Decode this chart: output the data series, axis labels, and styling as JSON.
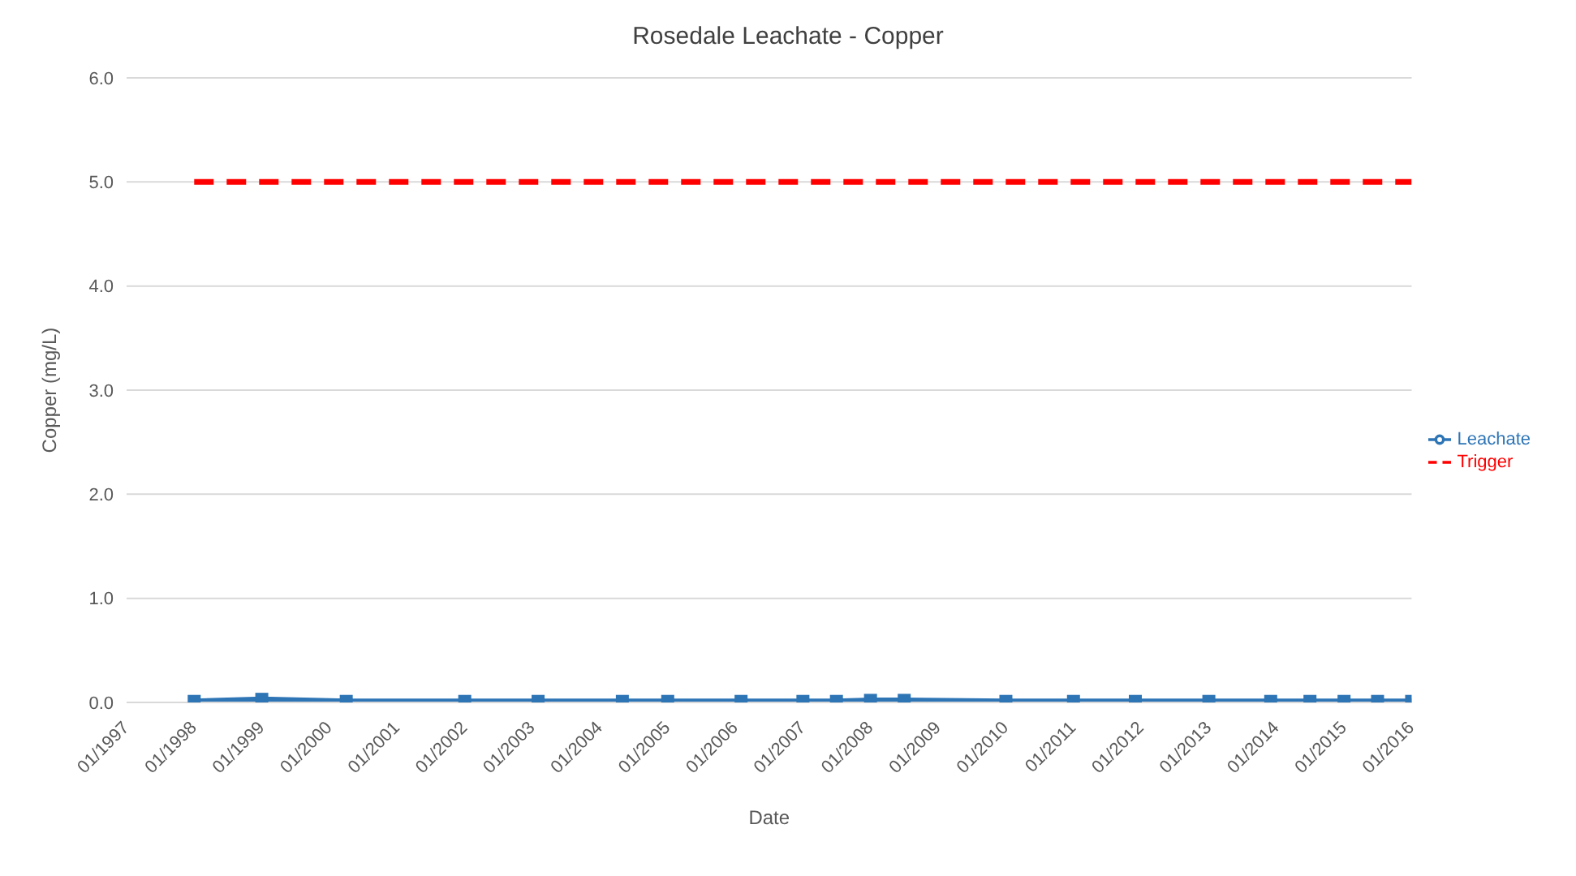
{
  "chart_data": {
    "type": "line",
    "title": "Rosedale Leachate - Copper",
    "xlabel": "Date",
    "ylabel": "Copper (mg/L)",
    "xlim": [
      "1997-01",
      "2016-01"
    ],
    "xticks": [
      {
        "value": "1997-01",
        "label": "01/1997"
      },
      {
        "value": "1998-01",
        "label": "01/1998"
      },
      {
        "value": "1999-01",
        "label": "01/1999"
      },
      {
        "value": "2000-01",
        "label": "01/2000"
      },
      {
        "value": "2001-01",
        "label": "01/2001"
      },
      {
        "value": "2002-01",
        "label": "01/2002"
      },
      {
        "value": "2003-01",
        "label": "01/2003"
      },
      {
        "value": "2004-01",
        "label": "01/2004"
      },
      {
        "value": "2005-01",
        "label": "01/2005"
      },
      {
        "value": "2006-01",
        "label": "01/2006"
      },
      {
        "value": "2007-01",
        "label": "01/2007"
      },
      {
        "value": "2008-01",
        "label": "01/2008"
      },
      {
        "value": "2009-01",
        "label": "01/2009"
      },
      {
        "value": "2010-01",
        "label": "01/2010"
      },
      {
        "value": "2011-01",
        "label": "01/2011"
      },
      {
        "value": "2012-01",
        "label": "01/2012"
      },
      {
        "value": "2013-01",
        "label": "01/2013"
      },
      {
        "value": "2014-01",
        "label": "01/2014"
      },
      {
        "value": "2015-01",
        "label": "01/2015"
      },
      {
        "value": "2016-01",
        "label": "01/2016"
      }
    ],
    "ylim": [
      0,
      6
    ],
    "yticks": [
      {
        "value": 0,
        "label": "0.0"
      },
      {
        "value": 1,
        "label": "1.0"
      },
      {
        "value": 2,
        "label": "2.0"
      },
      {
        "value": 3,
        "label": "3.0"
      },
      {
        "value": 4,
        "label": "4.0"
      },
      {
        "value": 5,
        "label": "5.0"
      },
      {
        "value": 6,
        "label": "6.0"
      }
    ],
    "grid": "y",
    "legend": "right",
    "series": [
      {
        "name": "Leachate",
        "color": "#2e75b6",
        "marker": "square",
        "line_style": "solid",
        "x": [
          "1998-01",
          "1999-01",
          "2000-04",
          "2002-01",
          "2003-02",
          "2004-05",
          "2005-01",
          "2006-02",
          "2007-01",
          "2007-07",
          "2008-01",
          "2008-07",
          "2010-01",
          "2011-01",
          "2011-12",
          "2013-01",
          "2013-12",
          "2014-07",
          "2015-01",
          "2015-07",
          "2016-01"
        ],
        "values": [
          0.01,
          0.03,
          0.01,
          0.01,
          0.01,
          0.01,
          0.01,
          0.01,
          0.01,
          0.01,
          0.02,
          0.02,
          0.01,
          0.01,
          0.01,
          0.01,
          0.01,
          0.01,
          0.01,
          0.01,
          0.01
        ]
      },
      {
        "name": "Trigger",
        "color": "#ff0000",
        "marker": "none",
        "line_style": "dashed",
        "x": [
          "1998-01",
          "2016-01"
        ],
        "values": [
          5,
          5
        ]
      }
    ]
  }
}
